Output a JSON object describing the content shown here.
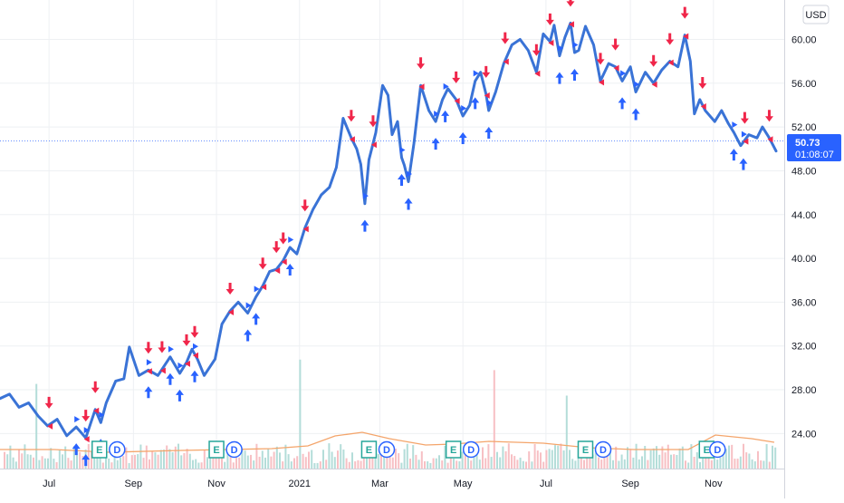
{
  "currency_button": "USD",
  "last_price_label": {
    "price": "50.73",
    "countdown": "01:08:07"
  },
  "colors": {
    "line": "#3a73d6",
    "up_arrow": "#2962ff",
    "down_arrow": "#f0264a",
    "volume_ma": "#f4a56b",
    "volume_up": "#b4ddd9",
    "volume_down": "#f7c0c4",
    "grid": "#eef0f3",
    "badge_e": "#26a69a",
    "badge_d": "#2962ff"
  },
  "chart_data": {
    "type": "line",
    "title": "",
    "xlabel": "",
    "ylabel": "",
    "ylim": [
      20.8,
      63.6
    ],
    "y_ticks": [
      "60.00",
      "56.00",
      "52.00",
      "48.00",
      "44.00",
      "40.00",
      "36.00",
      "32.00",
      "28.00",
      "24.00"
    ],
    "y_tick_values": [
      60,
      56,
      52,
      48,
      44,
      40,
      36,
      32,
      28,
      24
    ],
    "x_ticks": [
      "Jul",
      "Sep",
      "Nov",
      "2021",
      "Mar",
      "May",
      "Jul",
      "Sep",
      "Nov"
    ],
    "x_tick_dates": [
      "2020-07-01",
      "2020-09-01",
      "2020-11-01",
      "2021-01-01",
      "2021-03-01",
      "2021-05-01",
      "2021-07-01",
      "2021-09-01",
      "2021-11-01"
    ],
    "x_range": [
      "2020-05-26",
      "2021-12-23"
    ],
    "grid": true,
    "series": [
      {
        "values": [
          [
            "2020-05-26",
            27.2
          ],
          [
            "2020-06-02",
            27.6
          ],
          [
            "2020-06-09",
            26.4
          ],
          [
            "2020-06-16",
            26.8
          ],
          [
            "2020-06-23",
            25.6
          ],
          [
            "2020-06-30",
            24.7
          ],
          [
            "2020-07-07",
            25.3
          ],
          [
            "2020-07-14",
            23.8
          ],
          [
            "2020-07-21",
            24.6
          ],
          [
            "2020-07-28",
            23.6
          ],
          [
            "2020-08-04",
            26.2
          ],
          [
            "2020-08-08",
            25.0
          ],
          [
            "2020-08-12",
            26.8
          ],
          [
            "2020-08-19",
            28.8
          ],
          [
            "2020-08-25",
            29.0
          ],
          [
            "2020-08-29",
            31.9
          ],
          [
            "2020-09-05",
            29.3
          ],
          [
            "2020-09-12",
            29.8
          ],
          [
            "2020-09-19",
            29.3
          ],
          [
            "2020-09-28",
            31.0
          ],
          [
            "2020-10-05",
            29.5
          ],
          [
            "2020-10-10",
            30.5
          ],
          [
            "2020-10-14",
            31.7
          ],
          [
            "2020-10-18",
            30.8
          ],
          [
            "2020-10-23",
            29.3
          ],
          [
            "2020-10-31",
            30.8
          ],
          [
            "2020-11-05",
            34.0
          ],
          [
            "2020-11-11",
            35.2
          ],
          [
            "2020-11-17",
            36.0
          ],
          [
            "2020-11-24",
            35.0
          ],
          [
            "2020-11-30",
            36.5
          ],
          [
            "2020-12-05",
            37.5
          ],
          [
            "2020-12-10",
            38.8
          ],
          [
            "2020-12-15",
            39.0
          ],
          [
            "2020-12-20",
            39.8
          ],
          [
            "2020-12-25",
            41.0
          ],
          [
            "2020-12-30",
            40.4
          ],
          [
            "2021-01-05",
            42.8
          ],
          [
            "2021-01-11",
            44.5
          ],
          [
            "2021-01-17",
            45.8
          ],
          [
            "2021-01-23",
            46.5
          ],
          [
            "2021-01-28",
            48.3
          ],
          [
            "2021-02-02",
            52.8
          ],
          [
            "2021-02-08",
            51.0
          ],
          [
            "2021-02-12",
            50.0
          ],
          [
            "2021-02-15",
            48.6
          ],
          [
            "2021-02-18",
            45.0
          ],
          [
            "2021-02-21",
            49.0
          ],
          [
            "2021-02-26",
            51.5
          ],
          [
            "2021-03-03",
            55.8
          ],
          [
            "2021-03-07",
            54.9
          ],
          [
            "2021-03-10",
            51.3
          ],
          [
            "2021-03-14",
            52.5
          ],
          [
            "2021-03-17",
            49.2
          ],
          [
            "2021-03-19",
            48.5
          ],
          [
            "2021-03-22",
            47.0
          ],
          [
            "2021-03-26",
            50.5
          ],
          [
            "2021-03-31",
            55.8
          ],
          [
            "2021-04-06",
            53.5
          ],
          [
            "2021-04-11",
            52.5
          ],
          [
            "2021-04-16",
            54.5
          ],
          [
            "2021-04-20",
            55.5
          ],
          [
            "2021-04-26",
            54.5
          ],
          [
            "2021-05-01",
            53.0
          ],
          [
            "2021-05-06",
            54.0
          ],
          [
            "2021-05-10",
            56.2
          ],
          [
            "2021-05-14",
            57.0
          ],
          [
            "2021-05-18",
            55.0
          ],
          [
            "2021-05-20",
            53.5
          ],
          [
            "2021-05-25",
            55.2
          ],
          [
            "2021-05-31",
            57.8
          ],
          [
            "2021-06-06",
            59.5
          ],
          [
            "2021-06-12",
            60.0
          ],
          [
            "2021-06-18",
            59.0
          ],
          [
            "2021-06-24",
            57.0
          ],
          [
            "2021-06-29",
            60.5
          ],
          [
            "2021-07-04",
            59.8
          ],
          [
            "2021-07-07",
            61.3
          ],
          [
            "2021-07-11",
            58.5
          ],
          [
            "2021-07-15",
            60.2
          ],
          [
            "2021-07-19",
            61.5
          ],
          [
            "2021-07-22",
            58.8
          ],
          [
            "2021-07-25",
            59.0
          ],
          [
            "2021-07-30",
            61.2
          ],
          [
            "2021-08-05",
            59.5
          ],
          [
            "2021-08-10",
            56.2
          ],
          [
            "2021-08-16",
            57.8
          ],
          [
            "2021-08-21",
            57.5
          ],
          [
            "2021-08-26",
            56.2
          ],
          [
            "2021-09-01",
            57.5
          ],
          [
            "2021-09-05",
            55.2
          ],
          [
            "2021-09-12",
            57.0
          ],
          [
            "2021-09-18",
            56.0
          ],
          [
            "2021-09-24",
            57.2
          ],
          [
            "2021-09-30",
            58.0
          ],
          [
            "2021-10-06",
            57.5
          ],
          [
            "2021-10-11",
            60.4
          ],
          [
            "2021-10-15",
            58.0
          ],
          [
            "2021-10-18",
            53.2
          ],
          [
            "2021-10-22",
            54.5
          ],
          [
            "2021-10-26",
            53.5
          ],
          [
            "2021-11-02",
            52.5
          ],
          [
            "2021-11-07",
            53.5
          ],
          [
            "2021-11-12",
            52.3
          ],
          [
            "2021-11-16",
            51.5
          ],
          [
            "2021-11-21",
            50.3
          ],
          [
            "2021-11-27",
            51.3
          ],
          [
            "2021-12-03",
            51.0
          ],
          [
            "2021-12-07",
            52.0
          ],
          [
            "2021-12-12",
            51.0
          ],
          [
            "2021-12-17",
            49.8
          ]
        ]
      }
    ],
    "buy_signal_dates": [
      "2020-07-21",
      "2020-07-28",
      "2020-08-08",
      "2020-09-12",
      "2020-09-28",
      "2020-10-05",
      "2020-10-16",
      "2020-11-24",
      "2020-11-30",
      "2020-12-25",
      "2021-02-18",
      "2021-03-17",
      "2021-03-22",
      "2021-04-11",
      "2021-04-18",
      "2021-05-01",
      "2021-05-10",
      "2021-05-20",
      "2021-07-11",
      "2021-07-22",
      "2021-08-26",
      "2021-09-05",
      "2021-11-16",
      "2021-11-23"
    ],
    "sell_signal_dates": [
      "2020-07-01",
      "2020-07-28",
      "2020-08-04",
      "2020-09-12",
      "2020-09-22",
      "2020-10-10",
      "2020-10-16",
      "2020-11-11",
      "2020-12-05",
      "2020-12-15",
      "2020-12-20",
      "2021-01-05",
      "2021-02-08",
      "2021-02-24",
      "2021-03-31",
      "2021-04-26",
      "2021-05-18",
      "2021-06-01",
      "2021-06-24",
      "2021-07-04",
      "2021-07-19",
      "2021-08-10",
      "2021-08-21",
      "2021-09-18",
      "2021-09-30",
      "2021-10-11",
      "2021-10-24",
      "2021-11-24",
      "2021-12-12"
    ],
    "events": [
      {
        "badge": "E",
        "date": "2020-08-07"
      },
      {
        "badge": "D",
        "date": "2020-08-20"
      },
      {
        "badge": "E",
        "date": "2020-11-01"
      },
      {
        "badge": "D",
        "date": "2020-11-14"
      },
      {
        "badge": "E",
        "date": "2021-02-21"
      },
      {
        "badge": "D",
        "date": "2021-03-06"
      },
      {
        "badge": "E",
        "date": "2021-04-24"
      },
      {
        "badge": "D",
        "date": "2021-05-07"
      },
      {
        "badge": "E",
        "date": "2021-07-30"
      },
      {
        "badge": "D",
        "date": "2021-08-12"
      },
      {
        "badge": "E",
        "date": "2021-10-27"
      },
      {
        "badge": "D",
        "date": "2021-11-04"
      }
    ]
  }
}
